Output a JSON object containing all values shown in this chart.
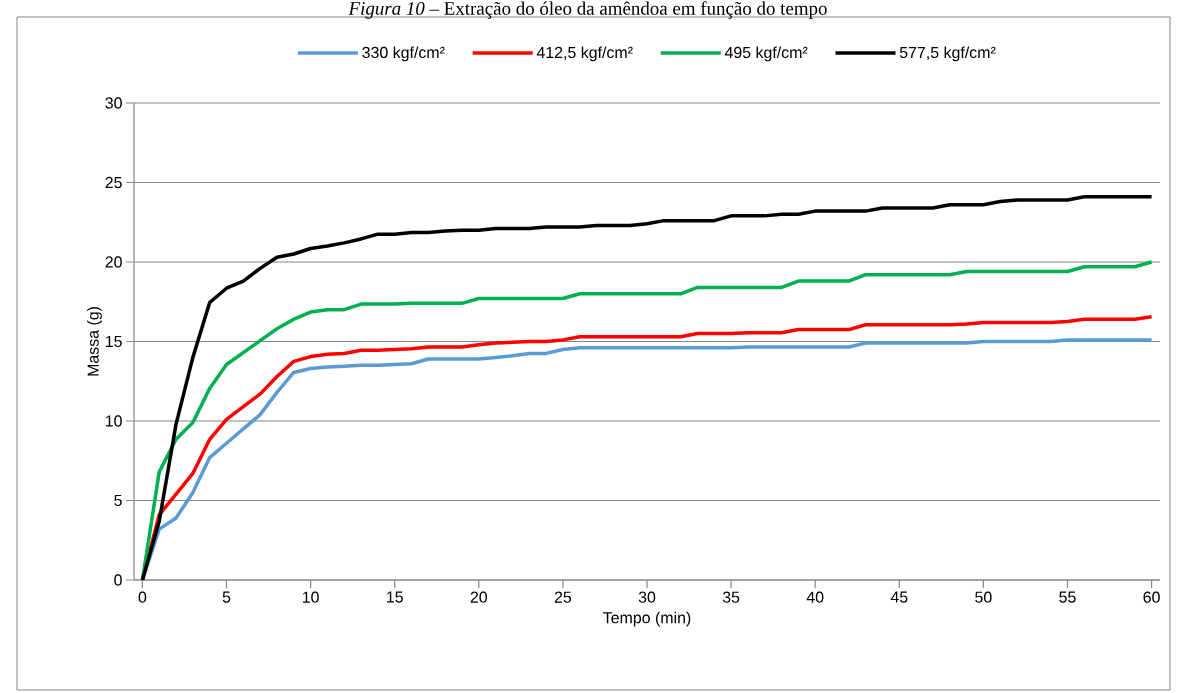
{
  "chart_data": {
    "type": "line",
    "title": "*Figura 10* – Extração do óleo da amêndoa em função do tempo",
    "xlabel": "Tempo (min)",
    "ylabel": "Massa (g)",
    "x": [
      0,
      1,
      2,
      3,
      4,
      5,
      6,
      7,
      8,
      9,
      10,
      11,
      12,
      13,
      14,
      15,
      16,
      17,
      18,
      19,
      20,
      21,
      22,
      23,
      24,
      25,
      26,
      27,
      28,
      29,
      30,
      31,
      32,
      33,
      34,
      35,
      36,
      37,
      38,
      39,
      40,
      41,
      42,
      43,
      44,
      45,
      46,
      47,
      48,
      49,
      50,
      51,
      52,
      53,
      54,
      55,
      56,
      57,
      58,
      59,
      60
    ],
    "series": [
      {
        "name": "330 kgf/cm²",
        "color": "#5b9bd5",
        "values": [
          0,
          3.2,
          3.9,
          5.5,
          7.7,
          8.6,
          9.5,
          10.4,
          11.8,
          13.05,
          13.3,
          13.4,
          13.45,
          13.5,
          13.5,
          13.55,
          13.6,
          13.9,
          13.9,
          13.9,
          13.9,
          14.0,
          14.1,
          14.25,
          14.25,
          14.5,
          14.6,
          14.6,
          14.6,
          14.6,
          14.6,
          14.6,
          14.6,
          14.6,
          14.6,
          14.6,
          14.65,
          14.65,
          14.65,
          14.65,
          14.65,
          14.65,
          14.65,
          14.9,
          14.9,
          14.9,
          14.9,
          14.9,
          14.9,
          14.9,
          15.0,
          15.0,
          15.0,
          15.0,
          15.0,
          15.1,
          15.1,
          15.1,
          15.1,
          15.1,
          15.1
        ]
      },
      {
        "name": "412,5 kgf/cm²",
        "color": "#ff0000",
        "values": [
          0,
          4.1,
          5.4,
          6.7,
          8.85,
          10.1,
          10.9,
          11.7,
          12.8,
          13.75,
          14.05,
          14.2,
          14.25,
          14.45,
          14.45,
          14.5,
          14.55,
          14.65,
          14.65,
          14.65,
          14.8,
          14.9,
          14.95,
          15.0,
          15.0,
          15.1,
          15.3,
          15.3,
          15.3,
          15.3,
          15.3,
          15.3,
          15.3,
          15.5,
          15.5,
          15.5,
          15.55,
          15.55,
          15.55,
          15.75,
          15.75,
          15.75,
          15.75,
          16.05,
          16.05,
          16.05,
          16.05,
          16.05,
          16.05,
          16.1,
          16.2,
          16.2,
          16.2,
          16.2,
          16.2,
          16.25,
          16.4,
          16.4,
          16.4,
          16.4,
          16.55
        ]
      },
      {
        "name": "495 kgf/cm²",
        "color": "#00b050",
        "values": [
          0,
          6.8,
          8.85,
          9.9,
          12.05,
          13.55,
          14.3,
          15.05,
          15.8,
          16.4,
          16.85,
          17.0,
          17.0,
          17.35,
          17.35,
          17.35,
          17.4,
          17.4,
          17.4,
          17.4,
          17.7,
          17.7,
          17.7,
          17.7,
          17.7,
          17.7,
          18.0,
          18.0,
          18.0,
          18.0,
          18.0,
          18.0,
          18.0,
          18.4,
          18.4,
          18.4,
          18.4,
          18.4,
          18.4,
          18.8,
          18.8,
          18.8,
          18.8,
          19.2,
          19.2,
          19.2,
          19.2,
          19.2,
          19.2,
          19.4,
          19.4,
          19.4,
          19.4,
          19.4,
          19.4,
          19.4,
          19.7,
          19.7,
          19.7,
          19.7,
          20.0
        ]
      },
      {
        "name": "577,5 kgf/cm²",
        "color": "#000000",
        "values": [
          0,
          3.7,
          9.8,
          14.0,
          17.45,
          18.35,
          18.8,
          19.6,
          20.3,
          20.5,
          20.85,
          21.0,
          21.2,
          21.45,
          21.75,
          21.75,
          21.85,
          21.85,
          21.95,
          22.0,
          22.0,
          22.1,
          22.1,
          22.1,
          22.2,
          22.2,
          22.2,
          22.3,
          22.3,
          22.3,
          22.4,
          22.6,
          22.6,
          22.6,
          22.6,
          22.9,
          22.9,
          22.9,
          23.0,
          23.0,
          23.2,
          23.2,
          23.2,
          23.2,
          23.4,
          23.4,
          23.4,
          23.4,
          23.6,
          23.6,
          23.6,
          23.8,
          23.9,
          23.9,
          23.9,
          23.9,
          24.1,
          24.1,
          24.1,
          24.1,
          24.1
        ]
      }
    ],
    "xlim": [
      -0.5,
      60.5
    ],
    "ylim": [
      0,
      30
    ],
    "xticks": [
      0,
      5,
      10,
      15,
      20,
      25,
      30,
      35,
      40,
      45,
      50,
      55,
      60
    ],
    "yticks": [
      0,
      5,
      10,
      15,
      20,
      25,
      30
    ],
    "grid": "y",
    "legend": "top"
  }
}
